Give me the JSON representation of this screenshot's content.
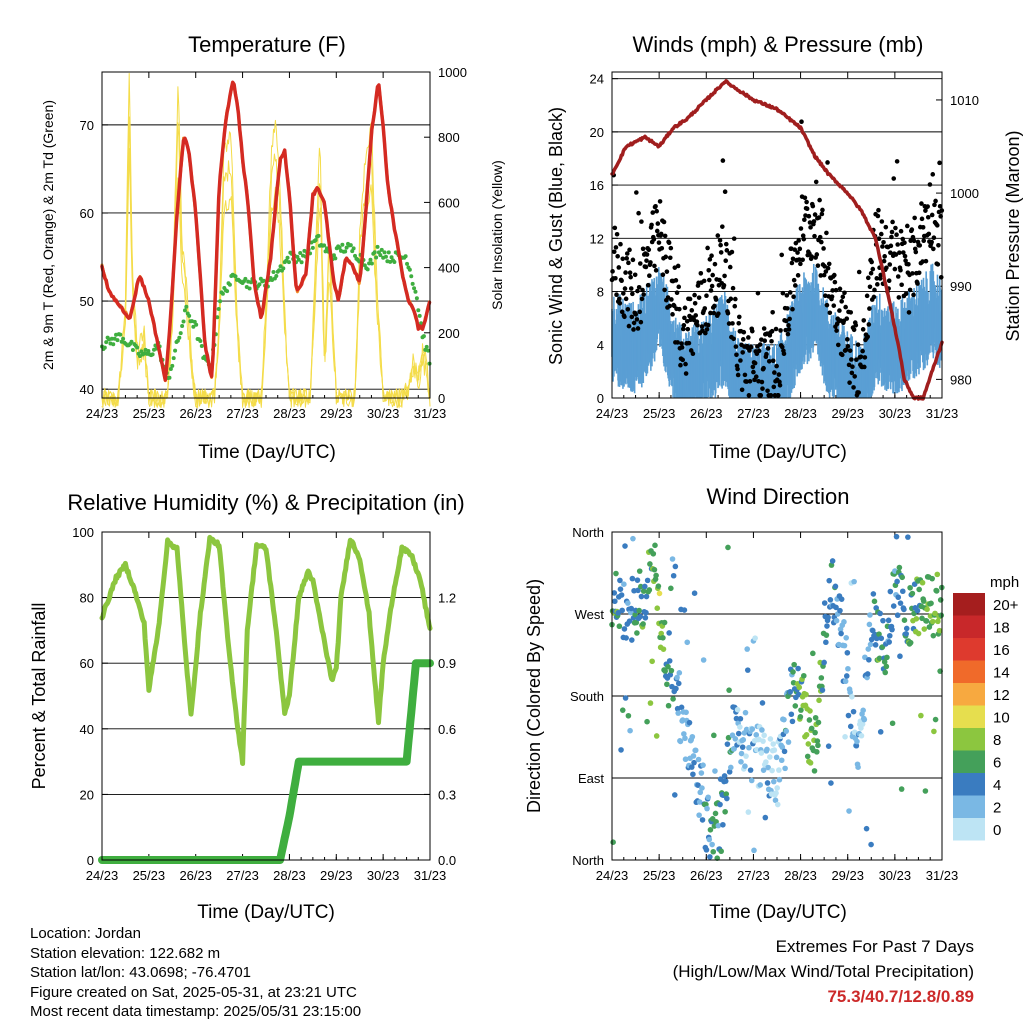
{
  "x_ticks": [
    "24/23",
    "25/23",
    "26/23",
    "27/23",
    "28/23",
    "29/23",
    "30/23",
    "31/23"
  ],
  "x_label": "Time (Day/UTC)",
  "colors": {
    "temp": "#d42a22",
    "temp9m": "#f08c28",
    "dewpoint": "#3fae3f",
    "solar": "#f4dc4a",
    "gust": "#000000",
    "wind": "#5a9fd4",
    "pressure": "#a01e1e",
    "rh": "#8cc63f",
    "precip": "#3fae3f"
  },
  "chart_data": [
    {
      "type": "line",
      "title": "Temperature (F)",
      "ylabel": "2m & 9m T (Red, Orange) & 2m Td (Green)",
      "y2label": "Solar Insolation (Yellow)",
      "ylim": [
        39,
        76
      ],
      "y2lim": [
        0,
        1000
      ],
      "yticks": [
        40,
        50,
        60,
        70
      ],
      "y2ticks": [
        0,
        200,
        400,
        600,
        800,
        1000
      ],
      "series": [
        {
          "key": "temp",
          "x": [
            0,
            0.15,
            0.3,
            0.6,
            0.8,
            1.0,
            1.2,
            1.35,
            1.45,
            1.6,
            1.75,
            1.85,
            2.0,
            2.2,
            2.35,
            2.5,
            2.65,
            2.8,
            2.9,
            3.0,
            3.1,
            3.25,
            3.4,
            3.6,
            3.8,
            3.9,
            4.0,
            4.15,
            4.35,
            4.5,
            4.6,
            4.75,
            4.95,
            5.05,
            5.2,
            5.35,
            5.5,
            5.6,
            5.75,
            5.9,
            6.0,
            6.1,
            6.25,
            6.35,
            6.45,
            6.55,
            6.65,
            6.75,
            6.85,
            6.95,
            7.0
          ],
          "y": [
            54,
            51,
            50,
            48,
            53,
            50,
            45,
            41,
            47,
            60,
            69,
            67,
            60,
            45,
            41,
            63,
            71,
            75,
            72,
            66,
            62,
            52,
            48,
            55,
            66,
            67,
            62,
            51,
            53,
            62,
            63,
            61,
            52,
            50,
            55,
            54,
            52,
            58,
            69,
            75,
            70,
            63,
            58,
            55,
            52,
            50,
            49,
            47,
            47,
            49,
            50
          ]
        },
        {
          "key": "dewpoint",
          "x": [
            0,
            0.4,
            0.8,
            1.0,
            1.2,
            1.4,
            1.6,
            1.8,
            2.0,
            2.2,
            2.35,
            2.5,
            2.7,
            2.9,
            3.1,
            3.3,
            3.5,
            3.7,
            4.0,
            4.3,
            4.6,
            4.9,
            5.1,
            5.3,
            5.5,
            5.7,
            5.9,
            6.1,
            6.3,
            6.5,
            6.7,
            6.85,
            7.0
          ],
          "y": [
            45,
            46,
            44,
            44,
            45,
            41,
            45,
            49,
            47,
            43,
            43,
            50,
            52,
            53,
            52,
            52,
            52,
            53,
            55,
            55,
            57,
            55,
            56,
            56,
            55,
            54,
            56,
            55,
            55,
            55,
            51,
            46,
            43
          ]
        },
        {
          "key": "solar",
          "x": [
            0,
            0.35,
            0.5,
            0.58,
            0.65,
            0.75,
            0.9,
            1.0,
            1.4,
            1.5,
            1.63,
            1.7,
            1.8,
            1.95,
            2.0,
            2.4,
            2.5,
            2.6,
            2.75,
            2.9,
            3.0,
            3.4,
            3.5,
            3.62,
            3.7,
            3.8,
            3.95,
            4.0,
            4.45,
            4.55,
            4.65,
            4.75,
            4.85,
            5.0,
            5.4,
            5.5,
            5.6,
            5.75,
            5.85,
            6.0,
            6.4,
            6.55,
            6.65,
            6.75,
            6.85,
            6.95,
            7.0
          ],
          "y": [
            0,
            0,
            300,
            1000,
            400,
            150,
            200,
            0,
            0,
            300,
            980,
            500,
            350,
            50,
            0,
            0,
            250,
            750,
            820,
            200,
            0,
            0,
            300,
            760,
            850,
            650,
            100,
            0,
            0,
            400,
            800,
            100,
            500,
            0,
            0,
            500,
            700,
            850,
            400,
            0,
            0,
            30,
            120,
            60,
            150,
            80,
            0
          ]
        }
      ]
    },
    {
      "type": "scatter",
      "title": "Winds (mph) & Pressure (mb)",
      "ylabel": "Sonic Wind & Gust (Blue, Black)",
      "y2label": "Station Pressure (Maroon)",
      "ylim": [
        0,
        24.5
      ],
      "y2lim": [
        978,
        1013
      ],
      "yticks": [
        0,
        4,
        8,
        12,
        16,
        20,
        24
      ],
      "y2ticks": [
        980,
        990,
        1000,
        1010
      ],
      "series": [
        {
          "key": "wind",
          "x": [
            0,
            0.5,
            1.0,
            1.5,
            2.0,
            2.4,
            2.7,
            3.0,
            3.5,
            4.0,
            4.3,
            4.6,
            5.0,
            5.3,
            5.6,
            6.0,
            6.3,
            6.6,
            6.8,
            7.0
          ],
          "y": [
            5,
            4,
            7,
            2,
            3,
            5,
            1,
            1,
            1,
            6,
            7,
            4,
            2,
            1,
            5,
            4,
            5,
            6,
            7,
            6
          ]
        },
        {
          "key": "gust",
          "x": [
            0,
            0.5,
            1.0,
            1.5,
            2.0,
            2.4,
            2.7,
            3.0,
            3.5,
            4.0,
            4.3,
            4.6,
            5.0,
            5.3,
            5.6,
            6.0,
            6.3,
            6.6,
            6.8,
            7.0
          ],
          "y": [
            11,
            8,
            13,
            5,
            8,
            11,
            4,
            3,
            3,
            13,
            14,
            10,
            5,
            3,
            12,
            11,
            10,
            13,
            15,
            12
          ]
        },
        {
          "key": "pressure",
          "x": [
            0,
            0.3,
            0.7,
            1.0,
            1.3,
            1.6,
            2.0,
            2.4,
            2.7,
            3.0,
            3.5,
            4.0,
            4.3,
            4.6,
            5.0,
            5.3,
            5.6,
            5.9,
            6.1,
            6.2,
            6.4,
            6.6,
            6.8,
            7.0
          ],
          "y": [
            1002,
            1005,
            1006,
            1005,
            1007,
            1008,
            1010,
            1012,
            1011,
            1010,
            1009,
            1007,
            1004,
            1002,
            1000,
            998,
            995,
            988,
            983,
            980,
            978,
            978,
            981,
            984
          ]
        }
      ]
    },
    {
      "type": "line",
      "title": "Relative Humidity (%) & Precipitation (in)",
      "ylabel": "Percent & Total Rainfall",
      "ylim": [
        0,
        100
      ],
      "y2lim": [
        0,
        1.5
      ],
      "yticks": [
        0,
        20,
        40,
        60,
        80,
        100
      ],
      "y2ticks": [
        0.0,
        0.3,
        0.6,
        0.9,
        1.2
      ],
      "series": [
        {
          "key": "rh",
          "x": [
            0,
            0.3,
            0.5,
            0.7,
            0.9,
            1.0,
            1.2,
            1.4,
            1.6,
            1.8,
            1.9,
            2.1,
            2.3,
            2.5,
            2.7,
            2.9,
            3.0,
            3.1,
            3.3,
            3.5,
            3.7,
            3.9,
            4.0,
            4.2,
            4.4,
            4.5,
            4.7,
            4.9,
            5.0,
            5.1,
            5.3,
            5.5,
            5.7,
            5.9,
            6.0,
            6.2,
            6.4,
            6.6,
            6.8,
            7.0
          ],
          "y": [
            74,
            86,
            90,
            82,
            72,
            52,
            70,
            97,
            95,
            60,
            44,
            75,
            98,
            96,
            65,
            40,
            30,
            70,
            96,
            95,
            72,
            45,
            50,
            80,
            88,
            85,
            70,
            55,
            58,
            80,
            98,
            92,
            75,
            42,
            60,
            80,
            95,
            93,
            85,
            70
          ]
        },
        {
          "key": "precip",
          "x": [
            0,
            3.8,
            4.0,
            4.2,
            4.4,
            6.5,
            6.7,
            7.0
          ],
          "y": [
            0,
            0,
            0.2,
            0.45,
            0.45,
            0.45,
            0.9,
            0.9
          ]
        }
      ]
    },
    {
      "type": "scatter",
      "title": "Wind Direction",
      "ylabel": "Direction (Colored By Speed)",
      "ylim": [
        0,
        360
      ],
      "ytick_labels": [
        "North",
        "East",
        "South",
        "West",
        "North"
      ],
      "legend_title": "mph",
      "legend_labels": [
        "20+",
        "18",
        "16",
        "14",
        "12",
        "10",
        "8",
        "6",
        "4",
        "2",
        "0"
      ],
      "legend_colors": [
        "#a51e1e",
        "#c8282a",
        "#de3a2e",
        "#f06a2a",
        "#f7a940",
        "#e6de4e",
        "#8cc63f",
        "#44a05a",
        "#3a7cc0",
        "#7ab8e4",
        "#bde4f4"
      ],
      "series": [
        {
          "key": "direction",
          "x": [
            0,
            0.3,
            0.6,
            0.9,
            1.2,
            1.5,
            1.8,
            2.0,
            2.3,
            2.6,
            2.9,
            3.2,
            3.5,
            3.8,
            4.0,
            4.3,
            4.6,
            4.9,
            5.2,
            5.5,
            5.8,
            6.0,
            6.3,
            6.6,
            6.9,
            7.0
          ],
          "y": [
            290,
            270,
            285,
            320,
            200,
            150,
            90,
            40,
            30,
            160,
            120,
            110,
            90,
            180,
            185,
            110,
            310,
            250,
            100,
            270,
            230,
            300,
            270,
            280,
            280,
            270
          ]
        }
      ]
    }
  ],
  "info": {
    "location": "Location: Jordan",
    "elevation": "Station elevation: 122.682 m",
    "latlon": "Station lat/lon: 43.0698; -76.4701",
    "created": "Figure created on Sat, 2025-05-31, at 23:21 UTC",
    "recent": "Most recent data timestamp: 2025/05/31 23:15:00"
  },
  "extremes": {
    "heading": "Extremes For Past 7 Days",
    "subheading": "(High/Low/Max Wind/Total Precipitation)",
    "values": "75.3/40.7/12.8/0.89"
  }
}
